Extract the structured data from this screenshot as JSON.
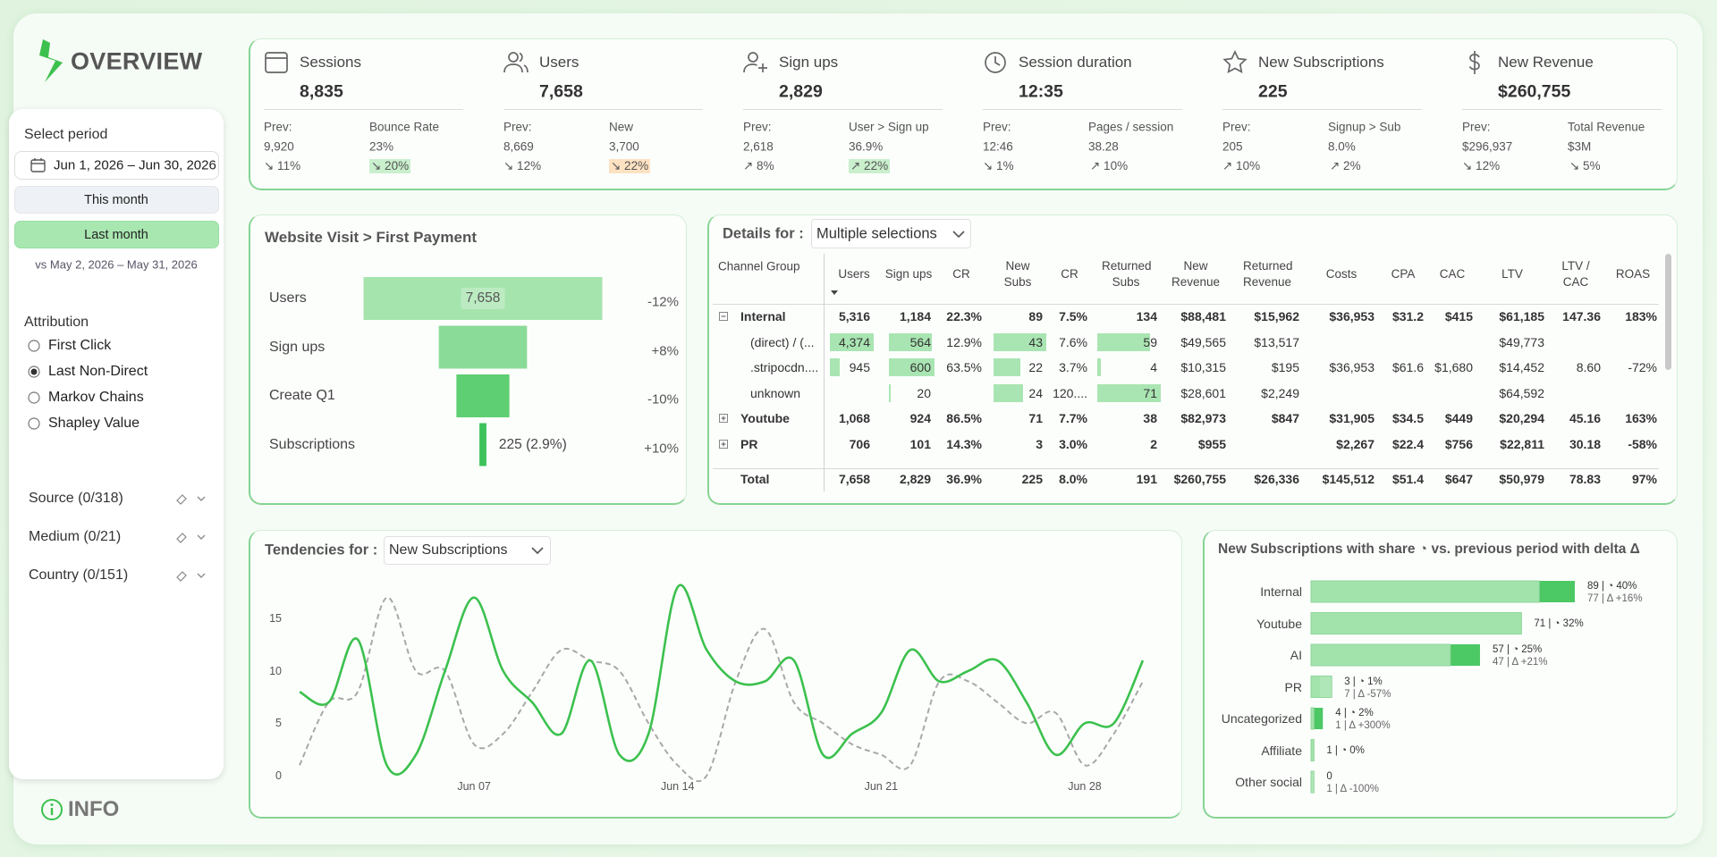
{
  "header": {
    "title": "OVERVIEW",
    "info": "INFO"
  },
  "sidebar": {
    "period_label": "Select period",
    "date_range": "Jun 1, 2026 – Jun 30, 2026",
    "buttons": [
      {
        "label": "This month",
        "active": false
      },
      {
        "label": "Last month",
        "active": true
      }
    ],
    "comparison": "vs May 2, 2026 – May 31, 2026",
    "attribution_label": "Attribution",
    "attribution_options": [
      {
        "label": "First Click",
        "selected": false
      },
      {
        "label": "Last Non-Direct",
        "selected": true
      },
      {
        "label": "Markov Chains",
        "selected": false
      },
      {
        "label": "Shapley Value",
        "selected": false
      }
    ],
    "filters": [
      "Source (0/318)",
      "Medium (0/21)",
      "Country (0/151)"
    ]
  },
  "kpis": [
    {
      "title": "Sessions",
      "value": "8,835",
      "prev_label": "Prev:",
      "prev_value": "9,920",
      "prev_delta": "↘ 11%",
      "metric_label": "Bounce Rate",
      "metric_value": "23%",
      "metric_delta": "↘ 20%",
      "metric_highlight": "green"
    },
    {
      "title": "Users",
      "value": "7,658",
      "prev_label": "Prev:",
      "prev_value": "8,669",
      "prev_delta": "↘ 12%",
      "metric_label": "New",
      "metric_value": "3,700",
      "metric_delta": "↘ 22%",
      "metric_highlight": "orange"
    },
    {
      "title": "Sign ups",
      "value": "2,829",
      "prev_label": "Prev:",
      "prev_value": "2,618",
      "prev_delta": "↗ 8%",
      "metric_label": "User > Sign up",
      "metric_value": "36.9%",
      "metric_delta": "↗ 22%",
      "metric_highlight": "green"
    },
    {
      "title": "Session duration",
      "value": "12:35",
      "prev_label": "Prev:",
      "prev_value": "12:46",
      "prev_delta": "↘ 1%",
      "metric_label": "Pages / session",
      "metric_value": "38.28",
      "metric_delta": "↗ 10%"
    },
    {
      "title": "New Subscriptions",
      "value": "225",
      "prev_label": "Prev:",
      "prev_value": "205",
      "prev_delta": "↗ 10%",
      "metric_label": "Signup > Sub",
      "metric_value": "8.0%",
      "metric_delta": "↗ 2%"
    },
    {
      "title": "New Revenue",
      "value": "$260,755",
      "prev_label": "Prev:",
      "prev_value": "$296,937",
      "prev_delta": "↘ 12%",
      "metric_label": "Total Revenue",
      "metric_value": "$3M",
      "metric_delta": "↘ 5%"
    }
  ],
  "details_table": {
    "title": "Details for :",
    "selection": "Multiple selections",
    "columns": [
      "Channel Group",
      "Users",
      "Sign ups",
      "CR",
      "New Subs",
      "CR",
      "Returned Subs",
      "New Revenue",
      "Returned Revenue",
      "Costs",
      "CPA",
      "CAC",
      "LTV",
      "LTV / CAC",
      "ROAS"
    ],
    "rows": [
      {
        "label": "Internal",
        "kind": "group",
        "expanded": true,
        "cells": [
          "5,316",
          "1,184",
          "22.3%",
          "89",
          "7.5%",
          "134",
          "$88,481",
          "$15,962",
          "$36,953",
          "$31.2",
          "$415",
          "$61,185",
          "147.36",
          "183%"
        ]
      },
      {
        "label": "(direct) / (...",
        "kind": "child",
        "cells": [
          "4,374",
          "564",
          "12.9%",
          "43",
          "7.6%",
          "59",
          "$49,565",
          "$13,517",
          null,
          null,
          null,
          "$49,773",
          null,
          null
        ]
      },
      {
        "label": ".stripocdn....",
        "kind": "child",
        "cells": [
          "945",
          "600",
          "63.5%",
          "22",
          "3.7%",
          "4",
          "$10,315",
          "$195",
          "$36,953",
          "$61.6",
          "$1,680",
          "$14,452",
          "8.60",
          "-72%"
        ]
      },
      {
        "label": "unknown",
        "kind": "child",
        "cells": [
          null,
          "20",
          null,
          "24",
          "120....",
          "71",
          "$28,601",
          "$2,249",
          null,
          null,
          null,
          "$64,592",
          null,
          null
        ]
      },
      {
        "label": "Youtube",
        "kind": "group",
        "expanded": false,
        "cells": [
          "1,068",
          "924",
          "86.5%",
          "71",
          "7.7%",
          "38",
          "$82,973",
          "$847",
          "$31,905",
          "$34.5",
          "$449",
          "$20,294",
          "45.16",
          "163%"
        ]
      },
      {
        "label": "PR",
        "kind": "group",
        "expanded": false,
        "cells": [
          "706",
          "101",
          "14.3%",
          "3",
          "3.0%",
          "2",
          "$955",
          null,
          "$2,267",
          "$22.4",
          "$756",
          "$22,811",
          "30.18",
          "-58%"
        ]
      },
      {
        "label": "Total",
        "kind": "total",
        "cells": [
          "7,658",
          "2,829",
          "36.9%",
          "225",
          "8.0%",
          "191",
          "$260,755",
          "$26,336",
          "$145,512",
          "$51.4",
          "$647",
          "$50,979",
          "78.83",
          "97%"
        ]
      }
    ]
  },
  "chart_data": [
    {
      "type": "funnel",
      "title": "Website Visit > First Payment",
      "categories": [
        "Users",
        "Sign ups",
        "Create Q1",
        "Subscriptions"
      ],
      "values": [
        7658,
        2829,
        1700,
        225
      ],
      "value_labels": [
        "7,658",
        null,
        null,
        "225 (2.9%)"
      ],
      "deltas": [
        "-12%",
        "+8%",
        "-10%",
        "+10%"
      ],
      "colors": [
        "#a6e4ae",
        "#8bdb98",
        "#5ecf73",
        "#3dc35a"
      ]
    },
    {
      "type": "line",
      "title": "Tendencies for :",
      "selection": "New Subscriptions",
      "categories": [
        null,
        null,
        null,
        null,
        null,
        null,
        "Jun 07",
        null,
        null,
        null,
        null,
        null,
        null,
        "Jun 14",
        null,
        null,
        null,
        null,
        null,
        null,
        "Jun 21",
        null,
        null,
        null,
        null,
        null,
        null,
        "Jun 28",
        null,
        null
      ],
      "series": [
        {
          "color": "#3cc14e",
          "values": [
            8,
            7,
            13,
            1,
            2,
            10,
            17,
            10,
            7,
            4,
            11,
            2,
            4,
            18,
            12,
            9,
            9,
            11,
            2,
            4,
            6,
            12,
            9,
            10,
            11,
            7,
            2,
            5,
            5,
            11
          ]
        },
        {
          "color": "#a8a8a8",
          "dashed": true,
          "values": [
            1,
            7,
            8,
            17,
            10,
            10,
            3,
            4,
            8,
            12,
            11,
            10,
            5,
            1,
            0,
            9,
            14,
            7,
            5,
            3,
            2,
            1,
            9,
            9,
            7,
            5,
            6,
            1,
            4,
            9
          ]
        }
      ],
      "ylim": [
        0,
        18
      ],
      "yticks": [
        0,
        5,
        10,
        15
      ],
      "grid": false
    },
    {
      "type": "hbar",
      "title": "New Subscriptions with share ◔ vs. previous period with delta Δ",
      "categories": [
        "Internal",
        "Youtube",
        "AI",
        "PR",
        "Uncategorized",
        "Affiliate",
        "Other social"
      ],
      "series": [
        {
          "color": "#4cc865",
          "values": [
            89,
            71,
            57,
            3,
            4,
            1,
            0
          ],
          "value_labels": [
            "89 | ◔ 40%",
            "71 | ◔ 32%",
            "57 | ◔ 25%",
            "3 | ◔ 1%",
            "4 | ◔ 2%",
            "1 | ◔ 0%",
            "0"
          ]
        },
        {
          "color": "#a9e5b2",
          "values": [
            77,
            71,
            47,
            7,
            1,
            1,
            1
          ],
          "value_labels": [
            "77 | Δ +16%",
            null,
            "47 | Δ +21%",
            "7 | Δ -57%",
            "1 | Δ +300%",
            null,
            "1 | Δ -100%"
          ]
        }
      ],
      "xlim": [
        0,
        100
      ]
    }
  ]
}
